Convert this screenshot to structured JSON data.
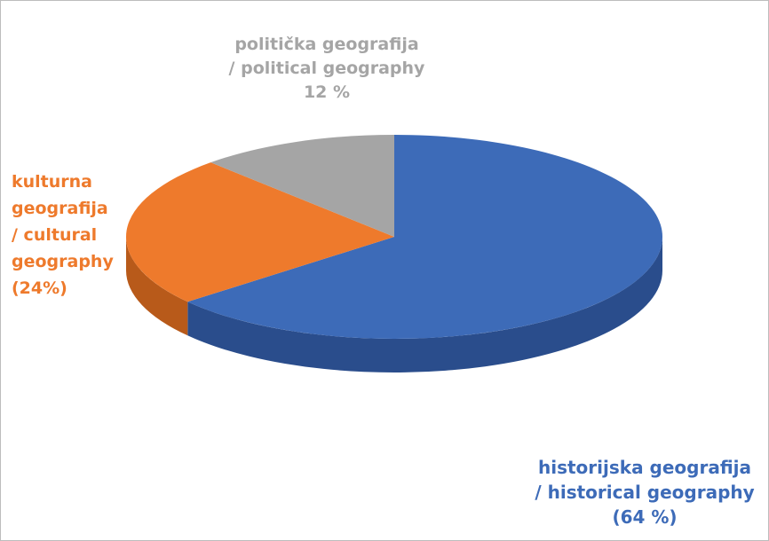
{
  "chart_data": {
    "type": "pie",
    "style": "3d",
    "start_angle_deg": 0,
    "direction": "clockwise",
    "slices": [
      {
        "value": 64,
        "color": "#3d6bb8",
        "side_color": "#2a4d8c",
        "label_lines": [
          "historijska geografija",
          "/ historical geography",
          "(64 %)"
        ]
      },
      {
        "value": 24,
        "color": "#ee7a2c",
        "side_color": "#b85a1a",
        "label_lines": [
          "kulturna",
          "geografija",
          "/ cultural",
          "geography",
          "(24%)"
        ]
      },
      {
        "value": 12,
        "color": "#a5a5a5",
        "side_color": "#7a7a7a",
        "label_lines": [
          "politička geografija",
          "/ political geography",
          "12 %"
        ]
      }
    ]
  }
}
